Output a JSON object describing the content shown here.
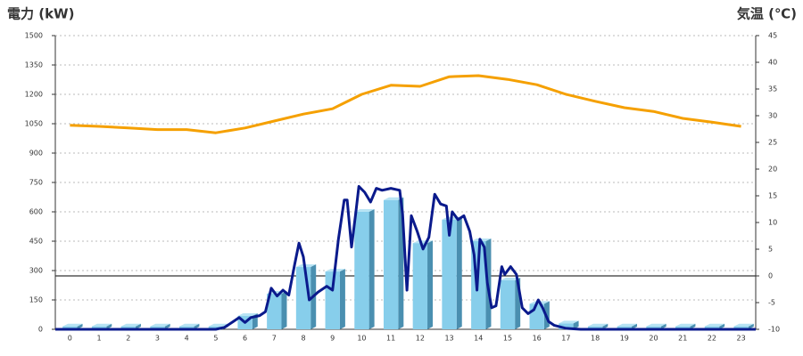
{
  "chart_data": {
    "type": "bar",
    "y_label": "電力 (kW)",
    "y_label_color": "#1a6fb5",
    "y2_label": "気温 (℃)",
    "y2_label_color": "#f08c28",
    "categories": [
      "0",
      "1",
      "2",
      "3",
      "4",
      "5",
      "6",
      "7",
      "8",
      "9",
      "10",
      "11",
      "12",
      "13",
      "14",
      "15",
      "16",
      "17",
      "18",
      "19",
      "20",
      "21",
      "22",
      "23"
    ],
    "ylim": [
      0,
      1500
    ],
    "yticks": [
      0,
      150,
      300,
      450,
      600,
      750,
      900,
      1050,
      1200,
      1350,
      1500
    ],
    "y2lim": [
      -10,
      45
    ],
    "y2ticks": [
      -10,
      -5,
      0,
      5,
      10,
      15,
      20,
      25,
      30,
      35,
      40,
      45
    ],
    "grid": true,
    "y2_zero_line": true,
    "series": [
      {
        "type": "bar",
        "color": "#87ceeb",
        "values": [
          15,
          15,
          15,
          15,
          15,
          15,
          68,
          182,
          318,
          295,
          600,
          660,
          440,
          560,
          450,
          250,
          130,
          30,
          15,
          15,
          15,
          15,
          15,
          15
        ]
      },
      {
        "type": "line",
        "color": "#0a1a8c",
        "x": [
          -0.5,
          5.0,
          5.3,
          5.6,
          5.8,
          6.0,
          6.2,
          6.5,
          6.7,
          6.9,
          7.1,
          7.3,
          7.5,
          7.7,
          7.85,
          8.0,
          8.2,
          8.5,
          8.8,
          9.0,
          9.2,
          9.4,
          9.5,
          9.65,
          9.8,
          9.9,
          10.1,
          10.3,
          10.5,
          10.7,
          11.0,
          11.3,
          11.4,
          11.55,
          11.7,
          11.9,
          12.1,
          12.3,
          12.5,
          12.7,
          12.9,
          13.0,
          13.1,
          13.3,
          13.5,
          13.7,
          13.85,
          13.95,
          14.05,
          14.2,
          14.3,
          14.45,
          14.6,
          14.8,
          14.9,
          15.1,
          15.3,
          15.5,
          15.7,
          15.9,
          16.05,
          16.2,
          16.4,
          16.6,
          17.0,
          17.5,
          23.5
        ],
        "values": [
          0,
          0,
          10,
          40,
          60,
          35,
          60,
          70,
          90,
          210,
          170,
          200,
          175,
          330,
          440,
          370,
          150,
          190,
          220,
          200,
          460,
          660,
          660,
          420,
          600,
          730,
          700,
          650,
          720,
          710,
          720,
          710,
          590,
          200,
          580,
          500,
          410,
          470,
          690,
          640,
          630,
          480,
          600,
          560,
          580,
          500,
          380,
          200,
          460,
          420,
          240,
          110,
          120,
          320,
          280,
          320,
          280,
          110,
          80,
          100,
          150,
          110,
          40,
          20,
          5,
          0,
          0
        ]
      },
      {
        "type": "line",
        "axis": "y2",
        "color": "#f5a000",
        "values": [
          28.2,
          28,
          27.7,
          27.4,
          27.4,
          26.8,
          27.7,
          29,
          30.3,
          31.3,
          34,
          35.7,
          35.5,
          37.3,
          37.5,
          36.8,
          35.8,
          34,
          32.7,
          31.5,
          30.8,
          29.5,
          28.8,
          28
        ]
      }
    ]
  }
}
